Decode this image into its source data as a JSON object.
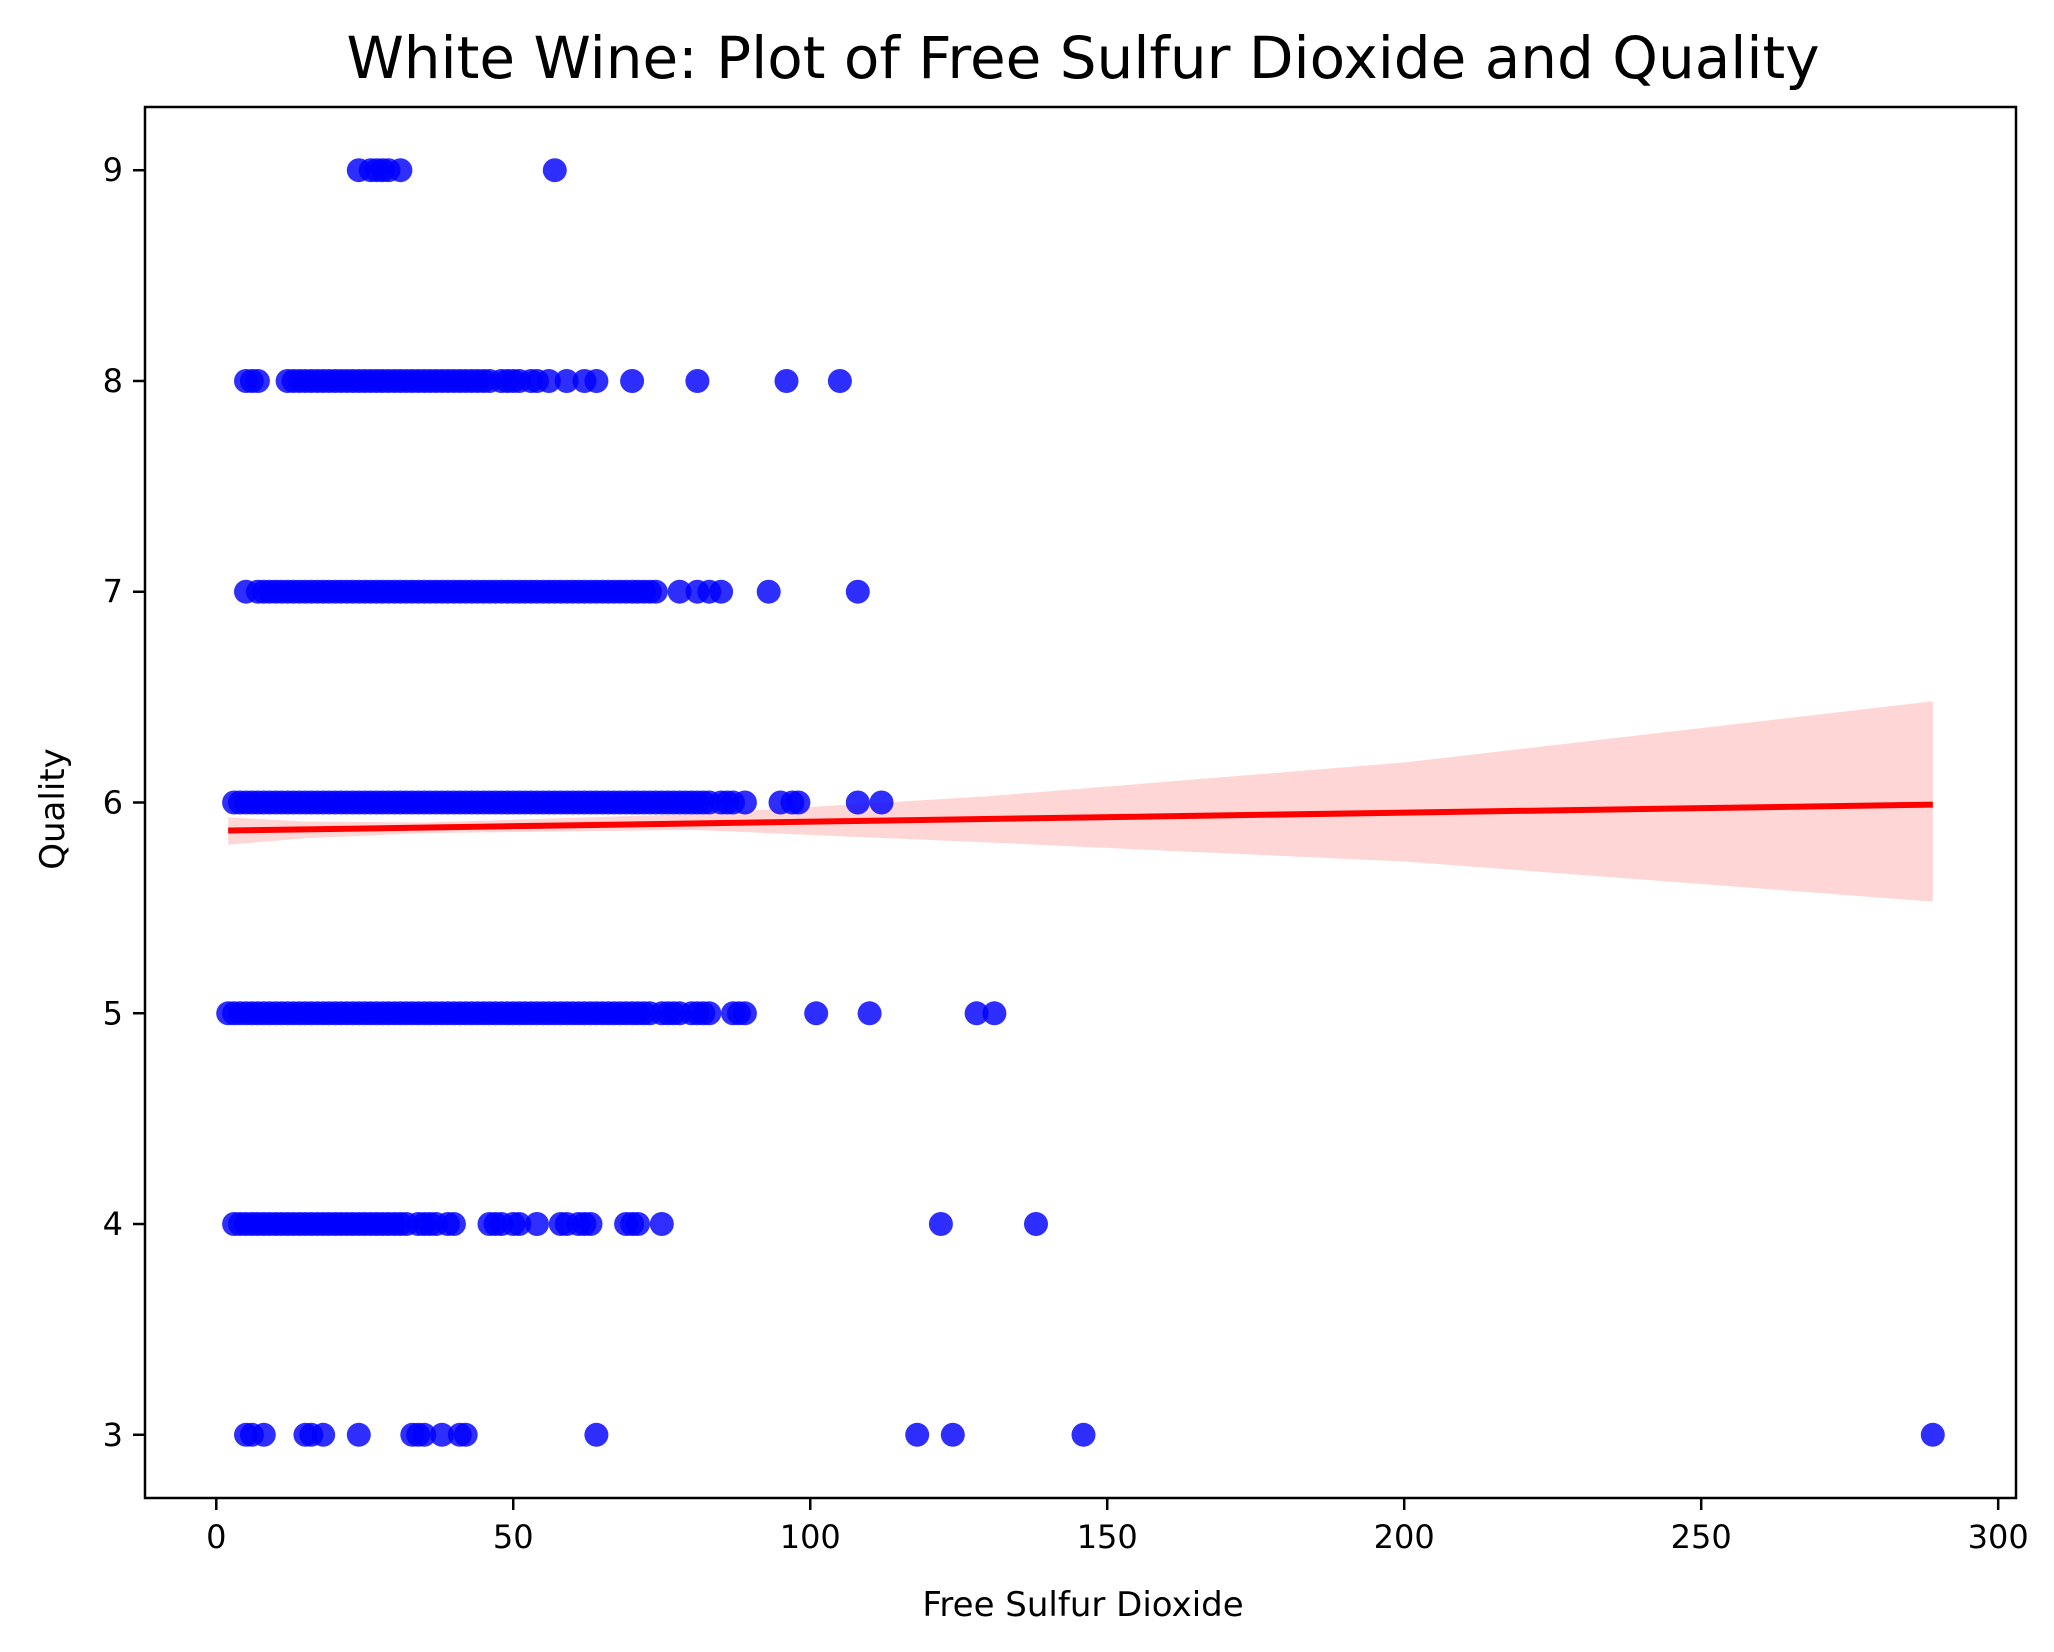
{
  "chart_data": {
    "type": "scatter",
    "title": "White Wine: Plot of Free Sulfur Dioxide and Quality",
    "xlabel": "Free Sulfur Dioxide",
    "ylabel": "Quality",
    "xlim": [
      -12,
      303
    ],
    "ylim": [
      2.7,
      9.3
    ],
    "xticks": [
      0,
      50,
      100,
      150,
      200,
      250,
      300
    ],
    "yticks": [
      3,
      4,
      5,
      6,
      7,
      8,
      9
    ],
    "grid": false,
    "colors": {
      "points": "#0000ff",
      "regression_line": "#ff0000",
      "confidence_band": "#ffd6d6"
    },
    "series": [
      {
        "kind": "points",
        "quality_levels": [
          {
            "y": 9,
            "x": [
              24,
              26,
              27,
              28,
              29,
              31,
              57
            ]
          },
          {
            "y": 8,
            "x": [
              5,
              6,
              7,
              12,
              13,
              14,
              15,
              16,
              17,
              18,
              19,
              20,
              21,
              22,
              23,
              24,
              25,
              26,
              27,
              28,
              29,
              30,
              31,
              32,
              33,
              34,
              35,
              36,
              37,
              38,
              39,
              40,
              41,
              42,
              43,
              44,
              45,
              46,
              48,
              49,
              50,
              51,
              53,
              54,
              56,
              59,
              62,
              64,
              70,
              81,
              96,
              105
            ]
          },
          {
            "y": 7,
            "x": [
              5,
              7,
              8,
              9,
              10,
              11,
              12,
              13,
              14,
              15,
              16,
              17,
              18,
              19,
              20,
              21,
              22,
              23,
              24,
              25,
              26,
              27,
              28,
              29,
              30,
              31,
              32,
              33,
              34,
              35,
              36,
              37,
              38,
              39,
              40,
              41,
              42,
              43,
              44,
              45,
              46,
              47,
              48,
              49,
              50,
              51,
              52,
              53,
              54,
              55,
              56,
              57,
              58,
              59,
              60,
              61,
              62,
              63,
              64,
              65,
              66,
              67,
              68,
              69,
              70,
              71,
              72,
              73,
              74,
              78,
              81,
              83,
              85,
              93,
              108
            ]
          },
          {
            "y": 6,
            "x": [
              3,
              4,
              5,
              6,
              7,
              8,
              9,
              10,
              11,
              12,
              13,
              14,
              15,
              16,
              17,
              18,
              19,
              20,
              21,
              22,
              23,
              24,
              25,
              26,
              27,
              28,
              29,
              30,
              31,
              32,
              33,
              34,
              35,
              36,
              37,
              38,
              39,
              40,
              41,
              42,
              43,
              44,
              45,
              46,
              47,
              48,
              49,
              50,
              51,
              52,
              53,
              54,
              55,
              56,
              57,
              58,
              59,
              60,
              61,
              62,
              63,
              64,
              65,
              66,
              67,
              68,
              69,
              70,
              71,
              72,
              73,
              74,
              75,
              76,
              77,
              78,
              79,
              80,
              81,
              82,
              83,
              85,
              86,
              87,
              89,
              95,
              97,
              98,
              108,
              112
            ]
          },
          {
            "y": 5,
            "x": [
              2,
              3,
              4,
              5,
              6,
              7,
              8,
              9,
              10,
              11,
              12,
              13,
              14,
              15,
              16,
              17,
              18,
              19,
              20,
              21,
              22,
              23,
              24,
              25,
              26,
              27,
              28,
              29,
              30,
              31,
              32,
              33,
              34,
              35,
              36,
              37,
              38,
              39,
              40,
              41,
              42,
              43,
              44,
              45,
              46,
              47,
              48,
              49,
              50,
              51,
              52,
              53,
              54,
              55,
              56,
              57,
              58,
              59,
              60,
              61,
              62,
              63,
              64,
              65,
              66,
              67,
              68,
              69,
              70,
              71,
              72,
              73,
              75,
              76,
              77,
              78,
              80,
              81,
              82,
              83,
              87,
              88,
              89,
              101,
              110,
              128,
              131
            ]
          },
          {
            "y": 4,
            "x": [
              3,
              4,
              5,
              6,
              7,
              8,
              9,
              10,
              11,
              12,
              13,
              14,
              15,
              16,
              17,
              18,
              19,
              20,
              21,
              22,
              23,
              24,
              25,
              26,
              27,
              28,
              29,
              30,
              31,
              32,
              34,
              35,
              36,
              37,
              39,
              40,
              46,
              47,
              48,
              50,
              51,
              54,
              58,
              59,
              61,
              62,
              63,
              69,
              70,
              71,
              75,
              122,
              138
            ]
          },
          {
            "y": 3,
            "x": [
              5,
              6,
              8,
              15,
              16,
              18,
              24,
              33,
              34,
              35,
              38,
              41,
              42,
              64,
              118,
              124,
              146,
              289
            ]
          }
        ]
      },
      {
        "kind": "regression_line",
        "x": [
          2,
          289
        ],
        "y": [
          5.867,
          5.99
        ]
      },
      {
        "kind": "confidence_band",
        "x": [
          2,
          15,
          35,
          80,
          130,
          200,
          289
        ],
        "upper": [
          5.93,
          5.91,
          5.905,
          5.945,
          6.03,
          6.19,
          6.48
        ],
        "lower": [
          5.8,
          5.83,
          5.855,
          5.87,
          5.81,
          5.72,
          5.53
        ]
      }
    ]
  }
}
